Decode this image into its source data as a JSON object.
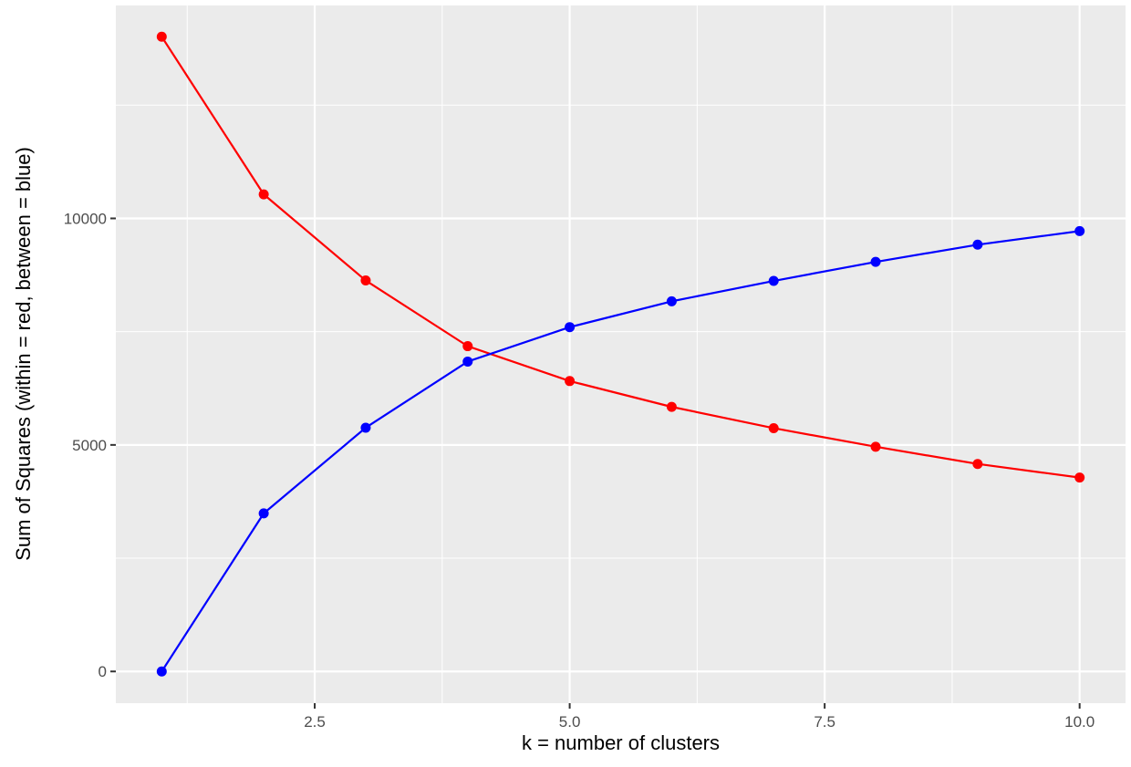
{
  "chart_data": {
    "type": "line",
    "title": "",
    "xlabel": "k = number of clusters",
    "ylabel": "Sum of Squares (within = red, between = blue)",
    "x": [
      1,
      2,
      3,
      4,
      5,
      6,
      7,
      8,
      9,
      10
    ],
    "xlim": [
      0.55,
      10.45
    ],
    "ylim": [
      -700,
      14700
    ],
    "x_ticks": [
      2.5,
      5.0,
      7.5,
      10.0
    ],
    "x_tick_labels": [
      "2.5",
      "5.0",
      "7.5",
      "10.0"
    ],
    "y_ticks": [
      0,
      5000,
      10000
    ],
    "y_tick_labels": [
      "0",
      "5000",
      "10000"
    ],
    "grid": true,
    "series": [
      {
        "key": "within",
        "color": "#ff0000",
        "values": [
          14010,
          10530,
          8630,
          7180,
          6410,
          5840,
          5370,
          4960,
          4580,
          4280
        ]
      },
      {
        "key": "between",
        "color": "#0000ff",
        "values": [
          0,
          3490,
          5380,
          6840,
          7600,
          8170,
          8620,
          9040,
          9420,
          9720
        ]
      }
    ]
  }
}
